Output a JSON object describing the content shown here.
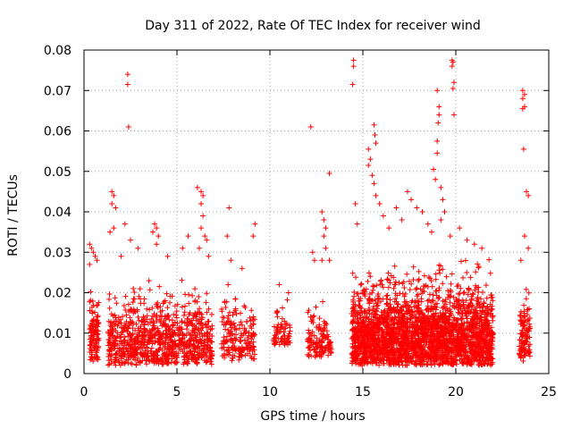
{
  "chart_data": {
    "type": "scatter",
    "title": "Day 311 of 2022, Rate Of TEC Index for receiver wind",
    "xlabel": "GPS time / hours",
    "ylabel": "ROTI / TECUs",
    "xlim": [
      0,
      25
    ],
    "ylim": [
      0,
      0.08
    ],
    "xticks": [
      0,
      5,
      10,
      15,
      20,
      25
    ],
    "yticks": [
      0,
      0.01,
      0.02,
      0.03,
      0.04,
      0.05,
      0.06,
      0.07,
      0.08
    ],
    "xtick_labels": [
      "0",
      "5",
      "10",
      "15",
      "20",
      "25"
    ],
    "ytick_labels": [
      "0",
      "0.01",
      "0.02",
      "0.03",
      "0.04",
      "0.05",
      "0.06",
      "0.07",
      "0.08"
    ],
    "grid": true,
    "marker": "+",
    "marker_color": "#ff0000",
    "clusters": [
      {
        "x": [
          0.3,
          0.8
        ],
        "y": [
          0.003,
          0.024
        ],
        "n": 120
      },
      {
        "x": [
          1.3,
          6.9
        ],
        "y": [
          0.002,
          0.025
        ],
        "n": 900
      },
      {
        "x": [
          7.4,
          8.2
        ],
        "y": [
          0.003,
          0.024
        ],
        "n": 90
      },
      {
        "x": [
          8.3,
          9.2
        ],
        "y": [
          0.003,
          0.022
        ],
        "n": 90
      },
      {
        "x": [
          10.2,
          11.1
        ],
        "y": [
          0.007,
          0.02
        ],
        "n": 70
      },
      {
        "x": [
          12.0,
          13.3
        ],
        "y": [
          0.004,
          0.02
        ],
        "n": 130
      },
      {
        "x": [
          14.4,
          22.0
        ],
        "y": [
          0.002,
          0.03
        ],
        "n": 2600
      },
      {
        "x": [
          23.4,
          24.0
        ],
        "y": [
          0.003,
          0.026
        ],
        "n": 120
      }
    ],
    "points": [
      {
        "x": 0.3,
        "y": 0.032
      },
      {
        "x": 0.4,
        "y": 0.031
      },
      {
        "x": 0.5,
        "y": 0.03
      },
      {
        "x": 0.6,
        "y": 0.029
      },
      {
        "x": 0.3,
        "y": 0.027
      },
      {
        "x": 0.7,
        "y": 0.028
      },
      {
        "x": 1.5,
        "y": 0.045
      },
      {
        "x": 1.6,
        "y": 0.044
      },
      {
        "x": 1.5,
        "y": 0.042
      },
      {
        "x": 1.7,
        "y": 0.041
      },
      {
        "x": 1.6,
        "y": 0.036
      },
      {
        "x": 1.4,
        "y": 0.035
      },
      {
        "x": 2.35,
        "y": 0.074
      },
      {
        "x": 2.35,
        "y": 0.0715
      },
      {
        "x": 2.4,
        "y": 0.061
      },
      {
        "x": 2.2,
        "y": 0.037
      },
      {
        "x": 2.5,
        "y": 0.033
      },
      {
        "x": 2.0,
        "y": 0.029
      },
      {
        "x": 2.9,
        "y": 0.031
      },
      {
        "x": 3.8,
        "y": 0.037
      },
      {
        "x": 3.9,
        "y": 0.036
      },
      {
        "x": 3.7,
        "y": 0.035
      },
      {
        "x": 4.0,
        "y": 0.034
      },
      {
        "x": 3.9,
        "y": 0.032
      },
      {
        "x": 4.5,
        "y": 0.029
      },
      {
        "x": 5.3,
        "y": 0.031
      },
      {
        "x": 5.6,
        "y": 0.034
      },
      {
        "x": 6.1,
        "y": 0.046
      },
      {
        "x": 6.3,
        "y": 0.045
      },
      {
        "x": 6.4,
        "y": 0.044
      },
      {
        "x": 6.3,
        "y": 0.042
      },
      {
        "x": 6.4,
        "y": 0.039
      },
      {
        "x": 6.3,
        "y": 0.036
      },
      {
        "x": 6.5,
        "y": 0.034
      },
      {
        "x": 6.6,
        "y": 0.033
      },
      {
        "x": 6.2,
        "y": 0.031
      },
      {
        "x": 6.7,
        "y": 0.029
      },
      {
        "x": 7.8,
        "y": 0.041
      },
      {
        "x": 7.7,
        "y": 0.034
      },
      {
        "x": 7.9,
        "y": 0.028
      },
      {
        "x": 8.5,
        "y": 0.026
      },
      {
        "x": 9.2,
        "y": 0.037
      },
      {
        "x": 9.1,
        "y": 0.034
      },
      {
        "x": 10.5,
        "y": 0.022
      },
      {
        "x": 11.0,
        "y": 0.02
      },
      {
        "x": 12.2,
        "y": 0.061
      },
      {
        "x": 12.3,
        "y": 0.03
      },
      {
        "x": 12.4,
        "y": 0.028
      },
      {
        "x": 12.8,
        "y": 0.04
      },
      {
        "x": 12.9,
        "y": 0.038
      },
      {
        "x": 13.0,
        "y": 0.036
      },
      {
        "x": 12.9,
        "y": 0.034
      },
      {
        "x": 13.0,
        "y": 0.031
      },
      {
        "x": 12.8,
        "y": 0.028
      },
      {
        "x": 13.2,
        "y": 0.0495
      },
      {
        "x": 13.2,
        "y": 0.028
      },
      {
        "x": 14.5,
        "y": 0.0775
      },
      {
        "x": 14.5,
        "y": 0.076
      },
      {
        "x": 14.45,
        "y": 0.0715
      },
      {
        "x": 14.6,
        "y": 0.042
      },
      {
        "x": 14.7,
        "y": 0.037
      },
      {
        "x": 15.3,
        "y": 0.0555
      },
      {
        "x": 15.4,
        "y": 0.053
      },
      {
        "x": 15.3,
        "y": 0.0515
      },
      {
        "x": 15.5,
        "y": 0.049
      },
      {
        "x": 15.6,
        "y": 0.0615
      },
      {
        "x": 15.65,
        "y": 0.059
      },
      {
        "x": 15.7,
        "y": 0.057
      },
      {
        "x": 15.6,
        "y": 0.047
      },
      {
        "x": 15.7,
        "y": 0.044
      },
      {
        "x": 15.9,
        "y": 0.042
      },
      {
        "x": 16.1,
        "y": 0.039
      },
      {
        "x": 16.4,
        "y": 0.036
      },
      {
        "x": 16.8,
        "y": 0.041
      },
      {
        "x": 17.1,
        "y": 0.038
      },
      {
        "x": 17.4,
        "y": 0.045
      },
      {
        "x": 17.6,
        "y": 0.043
      },
      {
        "x": 17.9,
        "y": 0.041
      },
      {
        "x": 18.2,
        "y": 0.04
      },
      {
        "x": 18.5,
        "y": 0.037
      },
      {
        "x": 18.7,
        "y": 0.035
      },
      {
        "x": 18.8,
        "y": 0.0505
      },
      {
        "x": 18.9,
        "y": 0.048
      },
      {
        "x": 19.0,
        "y": 0.0545
      },
      {
        "x": 19.0,
        "y": 0.0575
      },
      {
        "x": 19.05,
        "y": 0.062
      },
      {
        "x": 19.1,
        "y": 0.064
      },
      {
        "x": 19.1,
        "y": 0.066
      },
      {
        "x": 19.0,
        "y": 0.07
      },
      {
        "x": 19.2,
        "y": 0.046
      },
      {
        "x": 19.3,
        "y": 0.043
      },
      {
        "x": 19.4,
        "y": 0.04
      },
      {
        "x": 19.2,
        "y": 0.038
      },
      {
        "x": 19.8,
        "y": 0.0775
      },
      {
        "x": 19.85,
        "y": 0.077
      },
      {
        "x": 19.8,
        "y": 0.076
      },
      {
        "x": 19.9,
        "y": 0.072
      },
      {
        "x": 19.85,
        "y": 0.0705
      },
      {
        "x": 19.9,
        "y": 0.064
      },
      {
        "x": 19.7,
        "y": 0.034
      },
      {
        "x": 20.2,
        "y": 0.036
      },
      {
        "x": 20.6,
        "y": 0.033
      },
      {
        "x": 21.0,
        "y": 0.032
      },
      {
        "x": 21.4,
        "y": 0.031
      },
      {
        "x": 23.6,
        "y": 0.07
      },
      {
        "x": 23.7,
        "y": 0.069
      },
      {
        "x": 23.6,
        "y": 0.068
      },
      {
        "x": 23.7,
        "y": 0.066
      },
      {
        "x": 23.6,
        "y": 0.0655
      },
      {
        "x": 23.65,
        "y": 0.0555
      },
      {
        "x": 23.8,
        "y": 0.045
      },
      {
        "x": 23.9,
        "y": 0.044
      },
      {
        "x": 23.7,
        "y": 0.034
      },
      {
        "x": 23.9,
        "y": 0.031
      },
      {
        "x": 23.5,
        "y": 0.028
      }
    ]
  }
}
